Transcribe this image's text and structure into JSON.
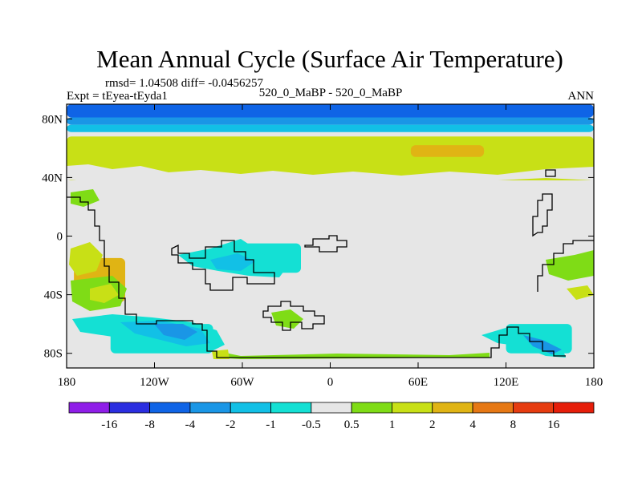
{
  "chart_data": {
    "type": "heatmap",
    "title": "Mean Annual Cycle (Surface Air Temperature)",
    "stats_text": "rmsd= 1.04508 diff= -0.0456257",
    "left_label": "Expt = tEyea-tEyda1",
    "center_label": "520_0_MaBP - 520_0_MaBP",
    "right_label": "ANN",
    "x_axis": {
      "range": [
        -180,
        180
      ],
      "ticks": [
        -180,
        -120,
        -60,
        0,
        60,
        120,
        180
      ],
      "tick_labels": [
        "180",
        "120W",
        "60W",
        "0",
        "60E",
        "120E",
        "180"
      ]
    },
    "y_axis": {
      "range": [
        -90,
        90
      ],
      "ticks": [
        80,
        40,
        0,
        -40,
        -80
      ],
      "tick_labels": [
        "80N",
        "40N",
        "0",
        "40S",
        "80S"
      ]
    },
    "colorbar": {
      "labels": [
        "-16",
        "-8",
        "-4",
        "-2",
        "-1",
        "-0.5",
        "0.5",
        "1",
        "2",
        "4",
        "8",
        "16"
      ],
      "colors": [
        "#8f1ee8",
        "#2b2ee0",
        "#0f64e6",
        "#1a96e6",
        "#12c0e6",
        "#14e0d4",
        "#e6e6e6",
        "#7fdc16",
        "#c8e016",
        "#e0b414",
        "#e67814",
        "#e63c10",
        "#e61e0a"
      ]
    },
    "regions": [
      {
        "name": "arctic-strong-cooling",
        "lon_range": [
          -180,
          180
        ],
        "lat_range": [
          81,
          90
        ],
        "level": "-8"
      },
      {
        "name": "arctic-cooling",
        "lon_range": [
          -180,
          180
        ],
        "lat_range": [
          76,
          81
        ],
        "level": "-4"
      },
      {
        "name": "arctic-mild-cooling",
        "lon_range": [
          -180,
          180
        ],
        "lat_range": [
          71,
          76
        ],
        "level": "-2"
      },
      {
        "name": "nh-midlat-warming",
        "lon_range": [
          -180,
          180
        ],
        "lat_range": [
          38,
          68
        ],
        "level": "1"
      },
      {
        "name": "nh-midlat-peak-warming",
        "lon_range": [
          55,
          105
        ],
        "lat_range": [
          54,
          62
        ],
        "level": "2"
      },
      {
        "name": "tropical-gondwana-cooling",
        "lon_range": [
          -70,
          -20
        ],
        "lat_range": [
          -25,
          -5
        ],
        "level": "-1"
      },
      {
        "name": "south-pacific-warming",
        "lon_range": [
          -175,
          -140
        ],
        "lat_range": [
          -45,
          -15
        ],
        "level": "2"
      },
      {
        "name": "southern-coast-cooling",
        "lon_range": [
          -150,
          -80
        ],
        "lat_range": [
          -80,
          -60
        ],
        "level": "-1"
      },
      {
        "name": "southern-coast-cooling-strong",
        "lon_range": [
          -110,
          -90
        ],
        "lat_range": [
          -75,
          -65
        ],
        "level": "-2"
      },
      {
        "name": "east-coast-cooling",
        "lon_range": [
          120,
          165
        ],
        "lat_range": [
          -80,
          -60
        ],
        "level": "-1"
      }
    ]
  }
}
